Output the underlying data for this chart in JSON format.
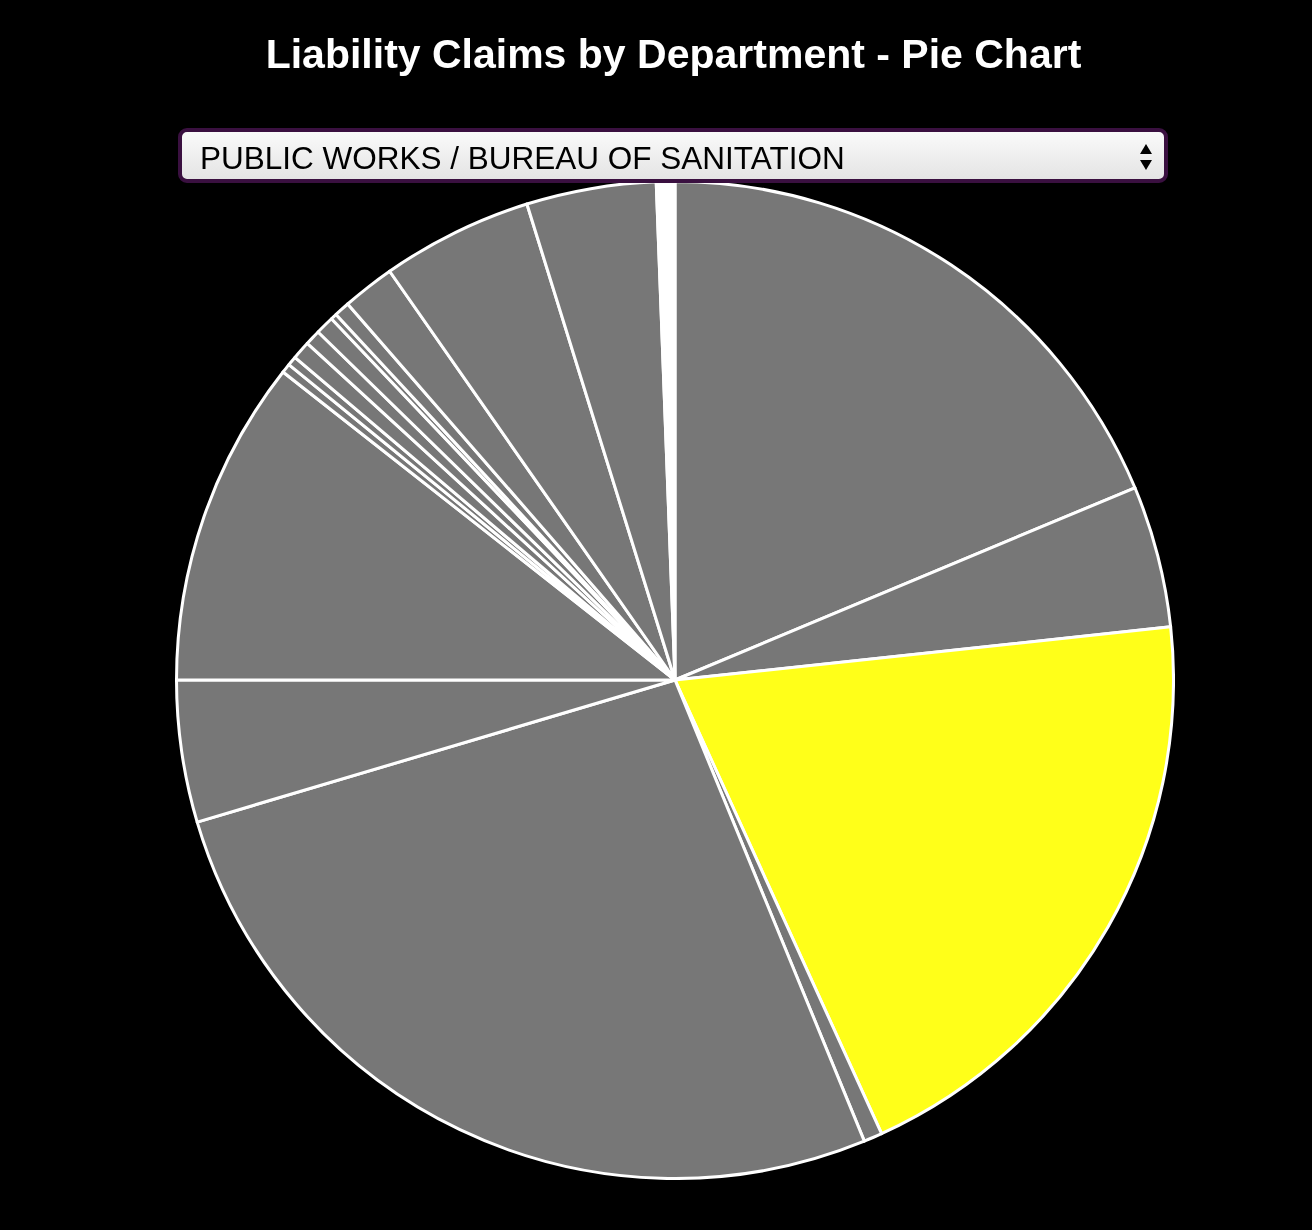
{
  "chart_data": {
    "type": "pie",
    "title": "Liability Claims by Department - Pie Chart",
    "annotations": [
      "PUBLIC WORKS / BUREAU OF SANITATION"
    ],
    "categories": [
      null,
      null,
      null,
      null,
      null,
      null,
      null,
      null,
      null,
      null,
      null,
      null,
      null,
      null,
      null,
      null,
      null,
      null
    ],
    "values": [
      18.7,
      4.6,
      19.9,
      0.6,
      26.6,
      4.6,
      10.6,
      0.3,
      0.3,
      0.6,
      0.5,
      0.6,
      0.2,
      0.5,
      1.7,
      4.9,
      4.2,
      0.6
    ],
    "colors": [
      "#777777",
      "#777777",
      "#ffff19",
      "#777777",
      "#777777",
      "#777777",
      "#777777",
      "#777777",
      "#777777",
      "#777777",
      "#777777",
      "#777777",
      "#777777",
      "#777777",
      "#777777",
      "#777777",
      "#777777",
      "#ffffff"
    ]
  }
}
